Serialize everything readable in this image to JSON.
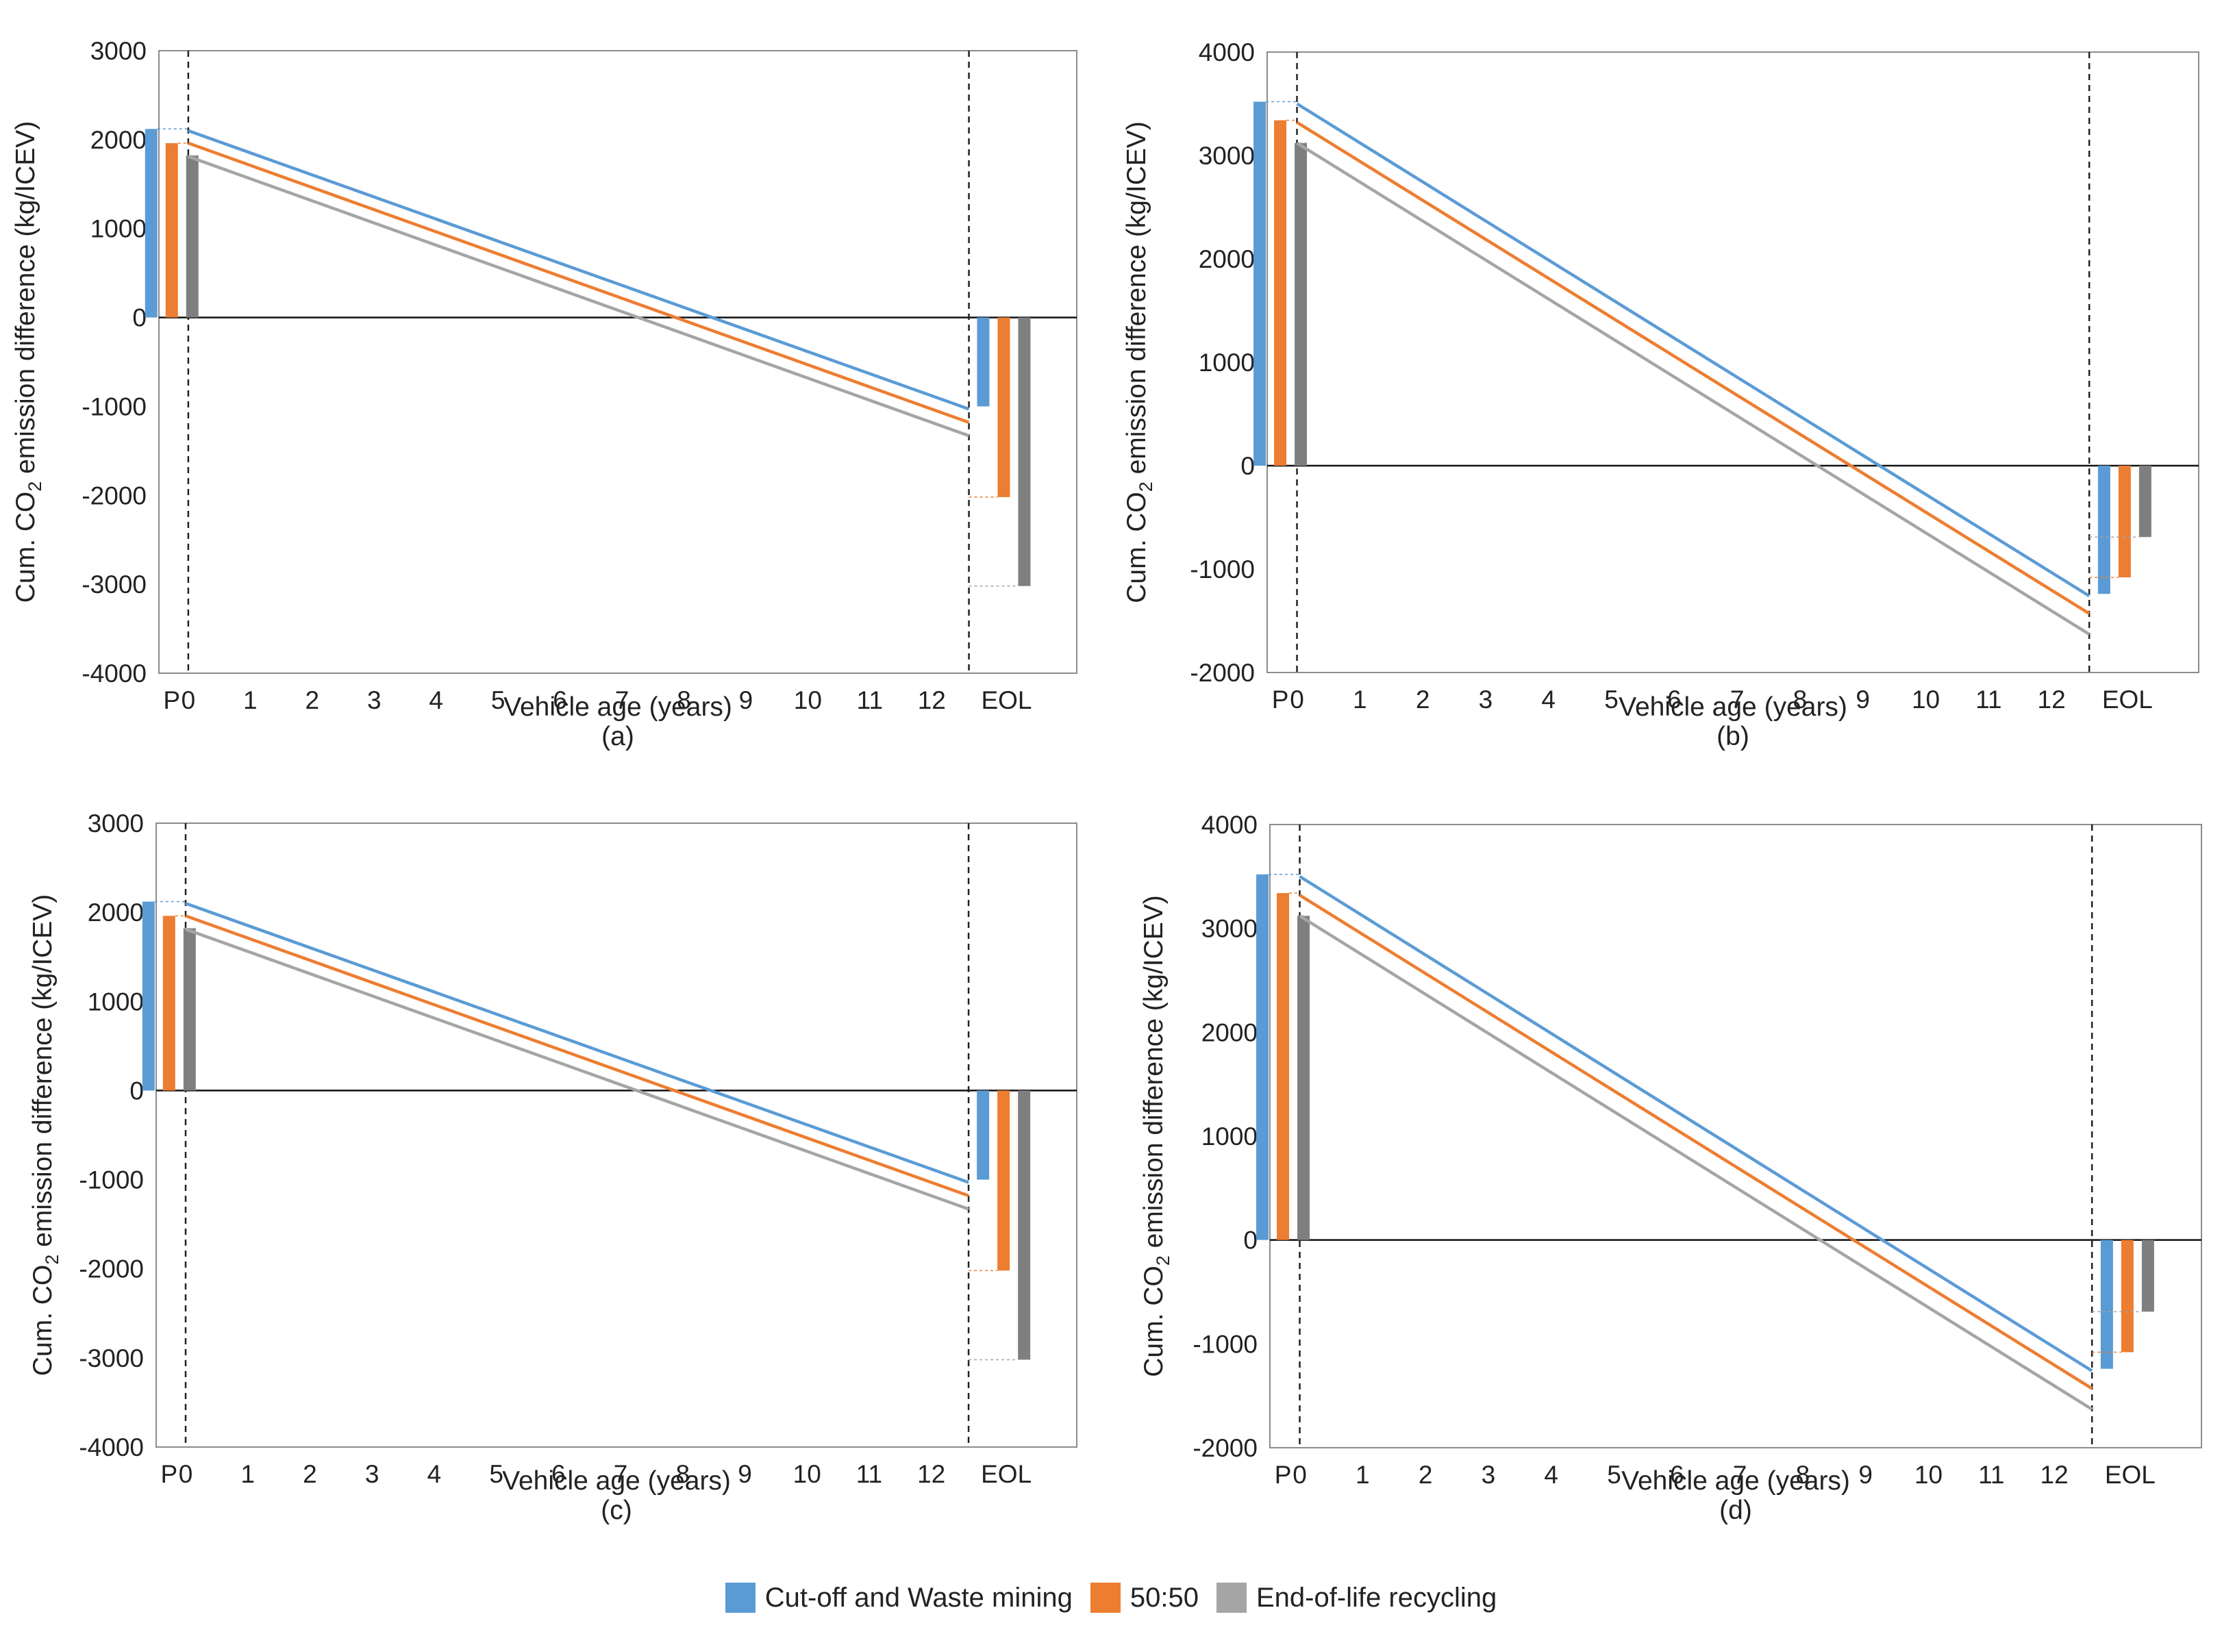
{
  "colors": {
    "cutoff": "#5B9BD5",
    "fifty": "#ED7D31",
    "eol": "#A5A5A5",
    "eol_bar": "#7F7F7F"
  },
  "legend": [
    {
      "label": "Cut-off and Waste mining",
      "color": "#5B9BD5"
    },
    {
      "label": "50:50",
      "color": "#ED7D31"
    },
    {
      "label": "End-of-life recycling",
      "color": "#A5A5A5"
    }
  ],
  "chart_data": [
    {
      "type": "line",
      "caption": "(a)",
      "xlabel": "Vehicle age (years)",
      "ylabel_prefix": "Cum. CO",
      "ylabel_sub": "2",
      "ylabel_suffix": " emission difference (kg/ICEV)",
      "ylim": [
        -4000,
        3000
      ],
      "yticks": [
        3000,
        2000,
        1000,
        0,
        -1000,
        -2000,
        -3000,
        -4000
      ],
      "x_categories": [
        "P",
        "0",
        "1",
        "2",
        "3",
        "4",
        "5",
        "6",
        "7",
        "8",
        "9",
        "10",
        "11",
        "12",
        "EOL"
      ],
      "lifetime_years": 12.6,
      "production_bars": [
        2120,
        1960,
        1820
      ],
      "lines": [
        {
          "name": "Cut-off and Waste mining",
          "start": 2100,
          "end": -1030
        },
        {
          "name": "50:50",
          "start": 1960,
          "end": -1180
        },
        {
          "name": "End-of-life recycling",
          "start": 1810,
          "end": -1330
        }
      ],
      "eol_bars": [
        -1000,
        -2020,
        -3020
      ]
    },
    {
      "type": "line",
      "caption": "(b)",
      "xlabel": "Vehicle age (years)",
      "ylabel_prefix": "Cum. CO",
      "ylabel_sub": "2",
      "ylabel_suffix": " emission difference (kg/ICEV)",
      "ylim": [
        -2000,
        4000
      ],
      "yticks": [
        4000,
        3000,
        2000,
        1000,
        0,
        -1000,
        -2000
      ],
      "x_categories": [
        "P",
        "0",
        "1",
        "2",
        "3",
        "4",
        "5",
        "6",
        "7",
        "8",
        "9",
        "10",
        "11",
        "12",
        "EOL"
      ],
      "lifetime_years": 12.6,
      "production_bars": [
        3520,
        3340,
        3120
      ],
      "lines": [
        {
          "name": "Cut-off and Waste mining",
          "start": 3500,
          "end": -1260
        },
        {
          "name": "50:50",
          "start": 3320,
          "end": -1430
        },
        {
          "name": "End-of-life recycling",
          "start": 3120,
          "end": -1630
        }
      ],
      "eol_bars": [
        -1240,
        -1080,
        -690
      ]
    },
    {
      "type": "line",
      "caption": "(c)",
      "xlabel": "Vehicle age (years)",
      "ylabel_prefix": "Cum. CO",
      "ylabel_sub": "2",
      "ylabel_suffix": " emission difference (kg/ICEV)",
      "ylim": [
        -4000,
        3000
      ],
      "yticks": [
        3000,
        2000,
        1000,
        0,
        -1000,
        -2000,
        -3000,
        -4000
      ],
      "x_categories": [
        "P",
        "0",
        "1",
        "2",
        "3",
        "4",
        "5",
        "6",
        "7",
        "8",
        "9",
        "10",
        "11",
        "12",
        "EOL"
      ],
      "lifetime_years": 12.6,
      "production_bars": [
        2120,
        1960,
        1820
      ],
      "lines": [
        {
          "name": "Cut-off and Waste mining",
          "start": 2100,
          "end": -1030
        },
        {
          "name": "50:50",
          "start": 1960,
          "end": -1180
        },
        {
          "name": "End-of-life recycling",
          "start": 1810,
          "end": -1330
        }
      ],
      "eol_bars": [
        -1000,
        -2020,
        -3020
      ]
    },
    {
      "type": "line",
      "caption": "(d)",
      "xlabel": "Vehicle age (years)",
      "ylabel_prefix": "Cum. CO",
      "ylabel_sub": "2",
      "ylabel_suffix": " emission difference (kg/ICEV)",
      "ylim": [
        -2000,
        4000
      ],
      "yticks": [
        4000,
        3000,
        2000,
        1000,
        0,
        -1000,
        -2000
      ],
      "x_categories": [
        "P",
        "0",
        "1",
        "2",
        "3",
        "4",
        "5",
        "6",
        "7",
        "8",
        "9",
        "10",
        "11",
        "12",
        "EOL"
      ],
      "lifetime_years": 12.6,
      "production_bars": [
        3520,
        3340,
        3120
      ],
      "lines": [
        {
          "name": "Cut-off and Waste mining",
          "start": 3500,
          "end": -1260
        },
        {
          "name": "50:50",
          "start": 3320,
          "end": -1430
        },
        {
          "name": "End-of-life recycling",
          "start": 3120,
          "end": -1630
        }
      ],
      "eol_bars": [
        -1240,
        -1080,
        -690
      ]
    }
  ]
}
